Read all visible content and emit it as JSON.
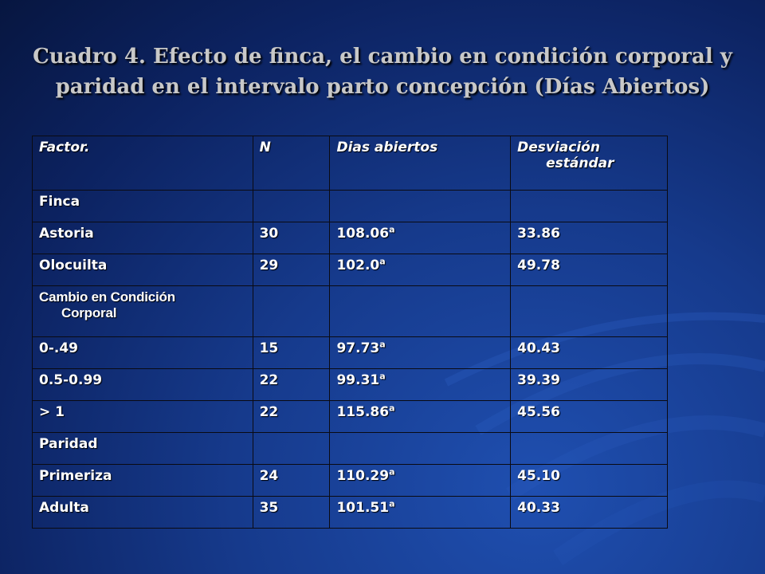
{
  "title": "Cuadro 4. Efecto de finca, el cambio en condición corporal y paridad en el intervalo parto concepción (Días Abiertos)",
  "table": {
    "headers": {
      "factor": "Factor.",
      "n": "N",
      "dias": "Dias abiertos",
      "desv_line1": "Desviación",
      "desv_line2": "estándar"
    },
    "sections": {
      "finca": "Finca",
      "cambio_line1": "Cambio en Condición",
      "cambio_line2": "Corporal",
      "paridad": "Paridad"
    },
    "rows": [
      {
        "factor": "Astoria",
        "n": "30",
        "dias": "108.06",
        "sup": "a",
        "desv": "33.86"
      },
      {
        "factor": "Olocuilta",
        "n": "29",
        "dias": "102.0",
        "sup": "a",
        "desv": "49.78"
      },
      {
        "factor": "0-.49",
        "n": "15",
        "dias": "97.73",
        "sup": "a",
        "desv": "40.43"
      },
      {
        "factor": "0.5-0.99",
        "n": "22",
        "dias": "99.31",
        "sup": "a",
        "desv": "39.39"
      },
      {
        "factor": "> 1",
        "n": "22",
        "dias": "115.86",
        "sup": "a",
        "desv": "45.56"
      },
      {
        "factor": "Primeriza",
        "n": "24",
        "dias": "110.29",
        "sup": "a",
        "desv": "45.10"
      },
      {
        "factor": "Adulta",
        "n": "35",
        "dias": "101.51",
        "sup": "a",
        "desv": "40.33"
      }
    ]
  }
}
